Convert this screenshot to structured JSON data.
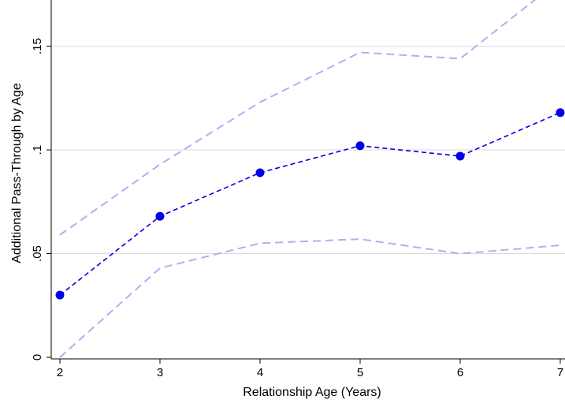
{
  "chart_data": {
    "type": "line",
    "xlabel": "Relationship Age (Years)",
    "ylabel": "Additional Pass-Through by Age",
    "x": [
      2,
      3,
      4,
      5,
      6,
      7
    ],
    "xlim": [
      2,
      7
    ],
    "ylim": [
      0,
      0.17
    ],
    "x_ticks": [
      2,
      3,
      4,
      5,
      6,
      7
    ],
    "x_tick_labels": [
      "2",
      "3",
      "4",
      "5",
      "6",
      "7"
    ],
    "y_ticks": [
      0,
      0.05,
      0.1,
      0.15
    ],
    "y_tick_labels": [
      "0",
      ".05",
      ".1",
      ".15"
    ],
    "grid": true,
    "series": [
      {
        "role": "estimate",
        "values": [
          0.03,
          0.068,
          0.089,
          0.102,
          0.097,
          0.118
        ],
        "color": "#0000e6",
        "markers": true
      },
      {
        "role": "upper-ci",
        "values": [
          0.059,
          0.093,
          0.123,
          0.147,
          0.144,
          0.182
        ],
        "color": "#a9b3ef",
        "markers": false
      },
      {
        "role": "lower-ci",
        "values": [
          0.0,
          0.043,
          0.055,
          0.057,
          0.05,
          0.054
        ],
        "color": "#a9b3ef",
        "markers": false
      }
    ]
  }
}
